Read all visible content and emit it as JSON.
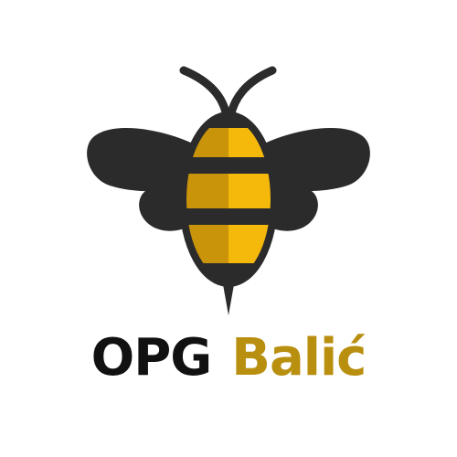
{
  "brand": {
    "name_part_1": "OPG",
    "name_part_2": "Balić",
    "icon": "bee-icon"
  },
  "colors": {
    "background": "#ffffff",
    "bee_dark": "#2b2b2b",
    "bee_yellow": "#f5b90c",
    "bee_yellow_shade": "#c9930a",
    "text_dark": "#111111",
    "text_gold": "#b98f10"
  }
}
